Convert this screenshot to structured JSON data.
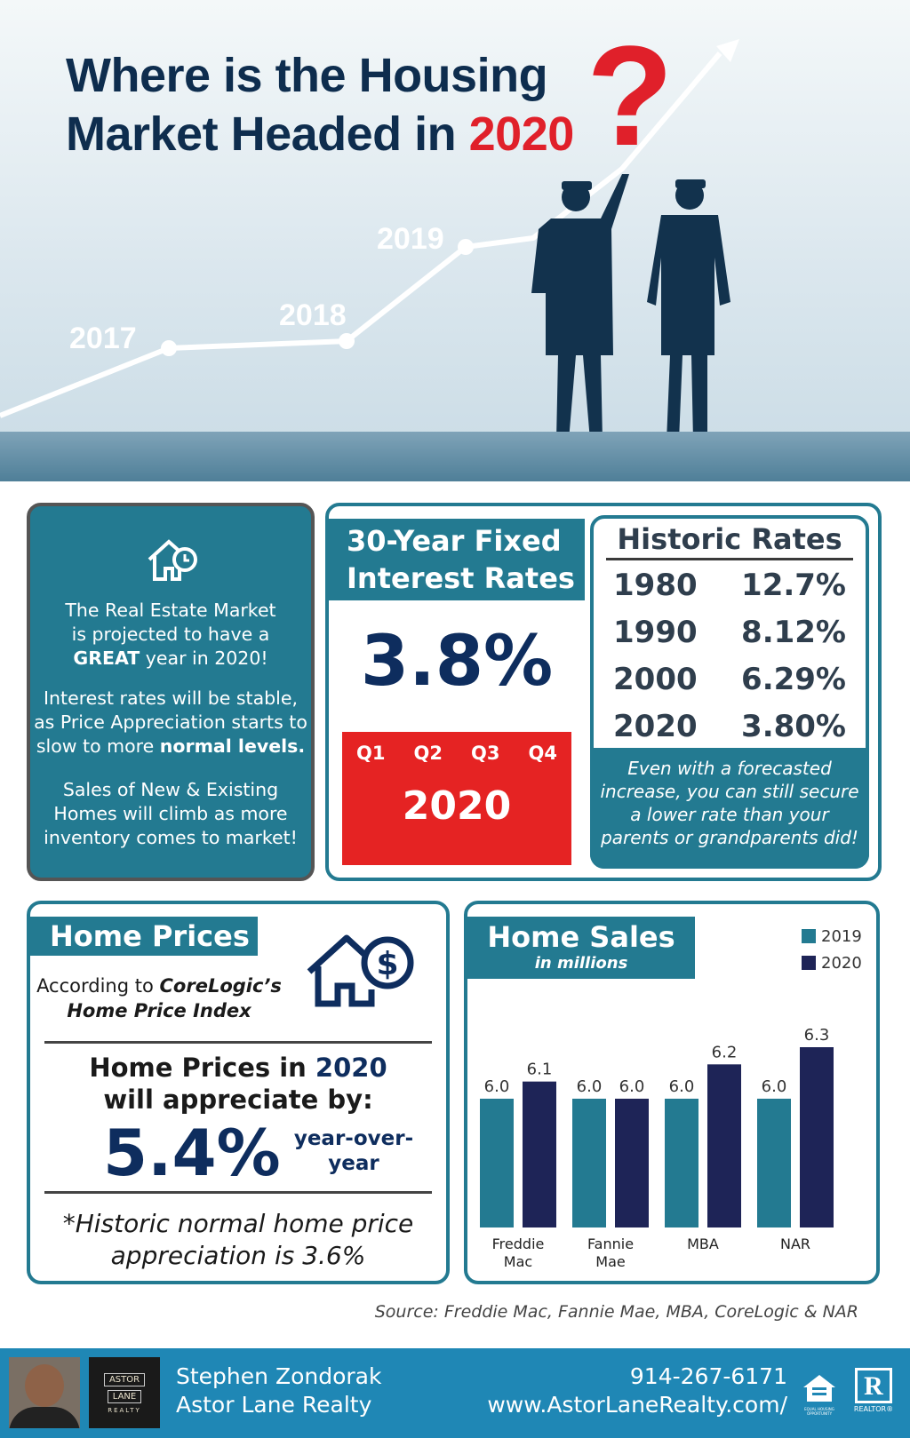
{
  "hero": {
    "title_line1": "Where is the Housing",
    "title_line2_prefix": "Market Headed in ",
    "title_year": "2020",
    "question_mark": "?",
    "timeline_years": [
      "2017",
      "2018",
      "2019"
    ]
  },
  "market_card": {
    "icon": "house-clock-icon",
    "line1": "The Real Estate Market",
    "line2": "is projected to have a",
    "line3_bold": "GREAT",
    "line3_rest": " year in 2020!",
    "p2_line1": "Interest rates will be stable,",
    "p2_line2": "as Price Appreciation starts to",
    "p2_line3": "slow to more ",
    "p2_line3_bold": "normal levels.",
    "p3_line1": "Sales of New & Existing",
    "p3_line2": "Homes will climb as more",
    "p3_line3": "inventory comes to market!"
  },
  "rates_card": {
    "header_line1": "30-Year Fixed",
    "header_line2": "Interest Rates",
    "rate": "3.8%",
    "quarters": [
      "Q1",
      "Q2",
      "Q3",
      "Q4"
    ],
    "year": "2020"
  },
  "historic": {
    "title": "Historic Rates",
    "rows": [
      {
        "year": "1980",
        "rate": "12.7%"
      },
      {
        "year": "1990",
        "rate": "8.12%"
      },
      {
        "year": "2000",
        "rate": "6.29%"
      },
      {
        "year": "2020",
        "rate": "3.80%"
      }
    ],
    "note_line1": "Even with a forecasted",
    "note_line2": "increase, you can still secure",
    "note_line3": "a lower rate than your",
    "note_line4": "parents or grandparents did!"
  },
  "home_prices": {
    "tab": "Home Prices",
    "source_prefix": "According to ",
    "source_name": "CoreLogic’s",
    "source_line2": "Home Price Index",
    "icon": "house-dollar-icon",
    "headline_prefix": "Home Prices in ",
    "headline_year": "2020",
    "headline_line2": "will appreciate by:",
    "value": "5.4%",
    "unit_line1": "year-over-",
    "unit_line2": "year",
    "note_line1": "*Historic normal home price",
    "note_line2": "appreciation is 3.6%"
  },
  "chart_data": {
    "type": "bar",
    "title": "Home Sales",
    "subtitle": "in millions",
    "categories": [
      "Freddie Mac",
      "Fannie Mae",
      "MBA",
      "NAR"
    ],
    "category_lines": [
      [
        "Freddie",
        "Mac"
      ],
      [
        "Fannie",
        "Mae"
      ],
      [
        "MBA"
      ],
      [
        "NAR"
      ]
    ],
    "series": [
      {
        "name": "2019",
        "values": [
          6.0,
          6.0,
          6.0,
          6.0
        ],
        "color": "#237a91"
      },
      {
        "name": "2020",
        "values": [
          6.1,
          6.0,
          6.2,
          6.3
        ],
        "color": "#1e2457"
      }
    ],
    "legend": "top-right",
    "grid": false
  },
  "source_text": "Source: Freddie Mac, Fannie Mae, MBA, CoreLogic & NAR",
  "footer": {
    "agent_name": "Stephen Zondorak",
    "company": "Astor Lane Realty",
    "phone": "914-267-6171",
    "website": "www.AstorLaneRealty.com/",
    "logo_line1": "ASTOR",
    "logo_line2": "LANE",
    "logo_line3": "REALTY",
    "realtor_label": "REALTOR®",
    "eho_label": "EQUAL HOUSING OPPORTUNITY",
    "colors": {
      "bar": "#1f87b5"
    }
  }
}
